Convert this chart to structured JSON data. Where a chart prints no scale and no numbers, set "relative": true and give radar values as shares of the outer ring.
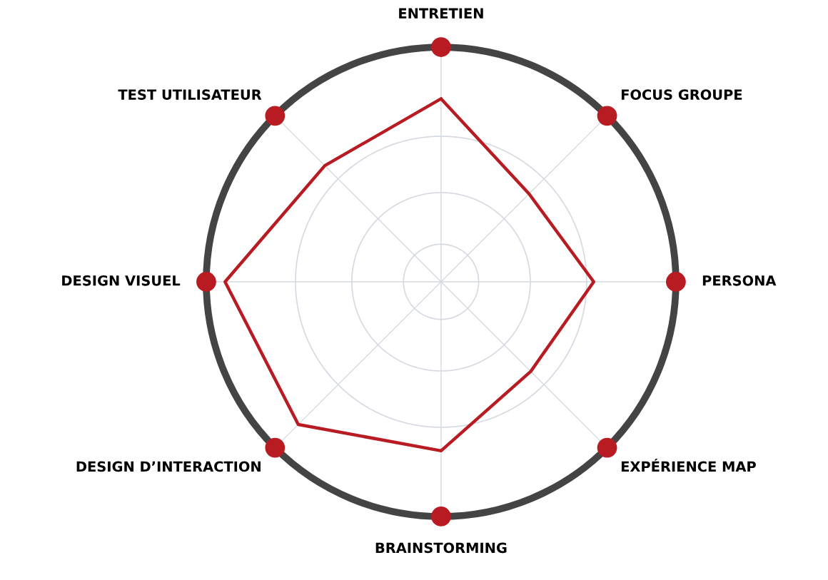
{
  "chart_data": {
    "type": "radar",
    "relative": true,
    "grid": true,
    "marker": "none",
    "line_style": "solid",
    "categories": [
      "ENTRETIEN",
      "FOCUS GROUPE",
      "PERSONA",
      "EXPÉRIENCE MAP",
      "BRAINSTORMING",
      "DESIGN D’INTERACTION",
      "DESIGN VISUEL",
      "TEST UTILISATEUR"
    ],
    "series": [
      {
        "color": "#b81c22",
        "values": [
          0.78,
          0.53,
          0.65,
          0.54,
          0.72,
          0.86,
          0.92,
          0.7
        ]
      }
    ]
  }
}
